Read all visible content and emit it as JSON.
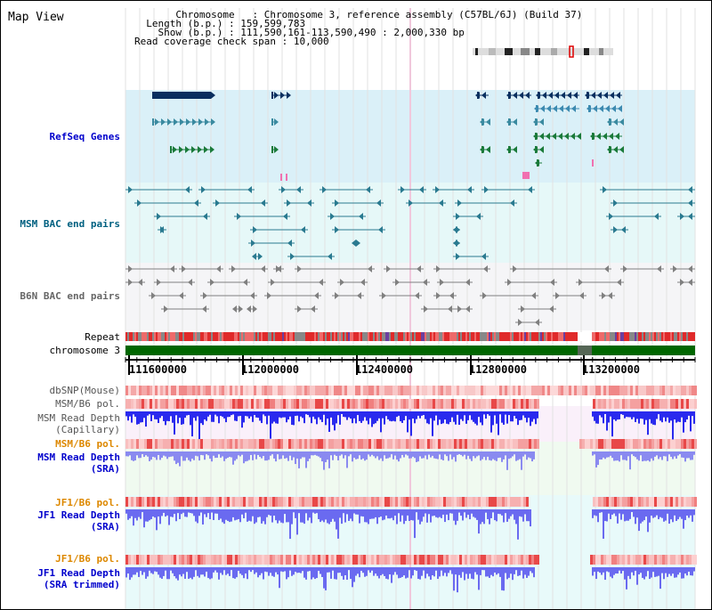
{
  "page": {
    "title": "Map View"
  },
  "info": {
    "chromosome_label": "Chromosome",
    "chromosome_value": "Chromosome 3, reference assembly (C57BL/6J) (Build 37)",
    "length_label": "Length (b.p.)",
    "length_value": "159,599,783",
    "show_label": "Show (b.p.)",
    "show_value": "111,590,161-113,590,490 : 2,000,330 bp",
    "coverage_label": "Read coverage check span",
    "coverage_value": "10,000"
  },
  "tracks": {
    "refseq": "RefSeq Genes",
    "msm_bac": "MSM BAC end pairs",
    "b6n_bac": "B6N BAC end pairs",
    "repeat": "Repeat",
    "chromosome": "chromosome 3",
    "dbsnp": "dbSNP(Mouse)",
    "msm_b6_pol": "MSM/B6 pol.",
    "msm_depth_cap": "MSM Read Depth\n(Capillary)",
    "msm_b6_pol_2": "MSM/B6 pol.",
    "msm_depth_sra": "MSM Read Depth\n(SRA)",
    "jf1_b6_pol": "JF1/B6 pol.",
    "jf1_depth_sra": "JF1 Read Depth\n(SRA)",
    "jf1_b6_pol_2": "JF1/B6 pol.",
    "jf1_depth_trim": "JF1 Read Depth\n(SRA trimmed)"
  },
  "axis": {
    "ticks": [
      "111600000",
      "112000000",
      "112400000",
      "112800000",
      "113200000"
    ]
  },
  "colors": {
    "refseq_label": "#0000cc",
    "bac_msm_label": "#006080",
    "bac_b6n_label": "#666666",
    "orange_label": "#dd8800",
    "blue_label": "#0000cc",
    "chromosome_bar": "#006600"
  }
}
